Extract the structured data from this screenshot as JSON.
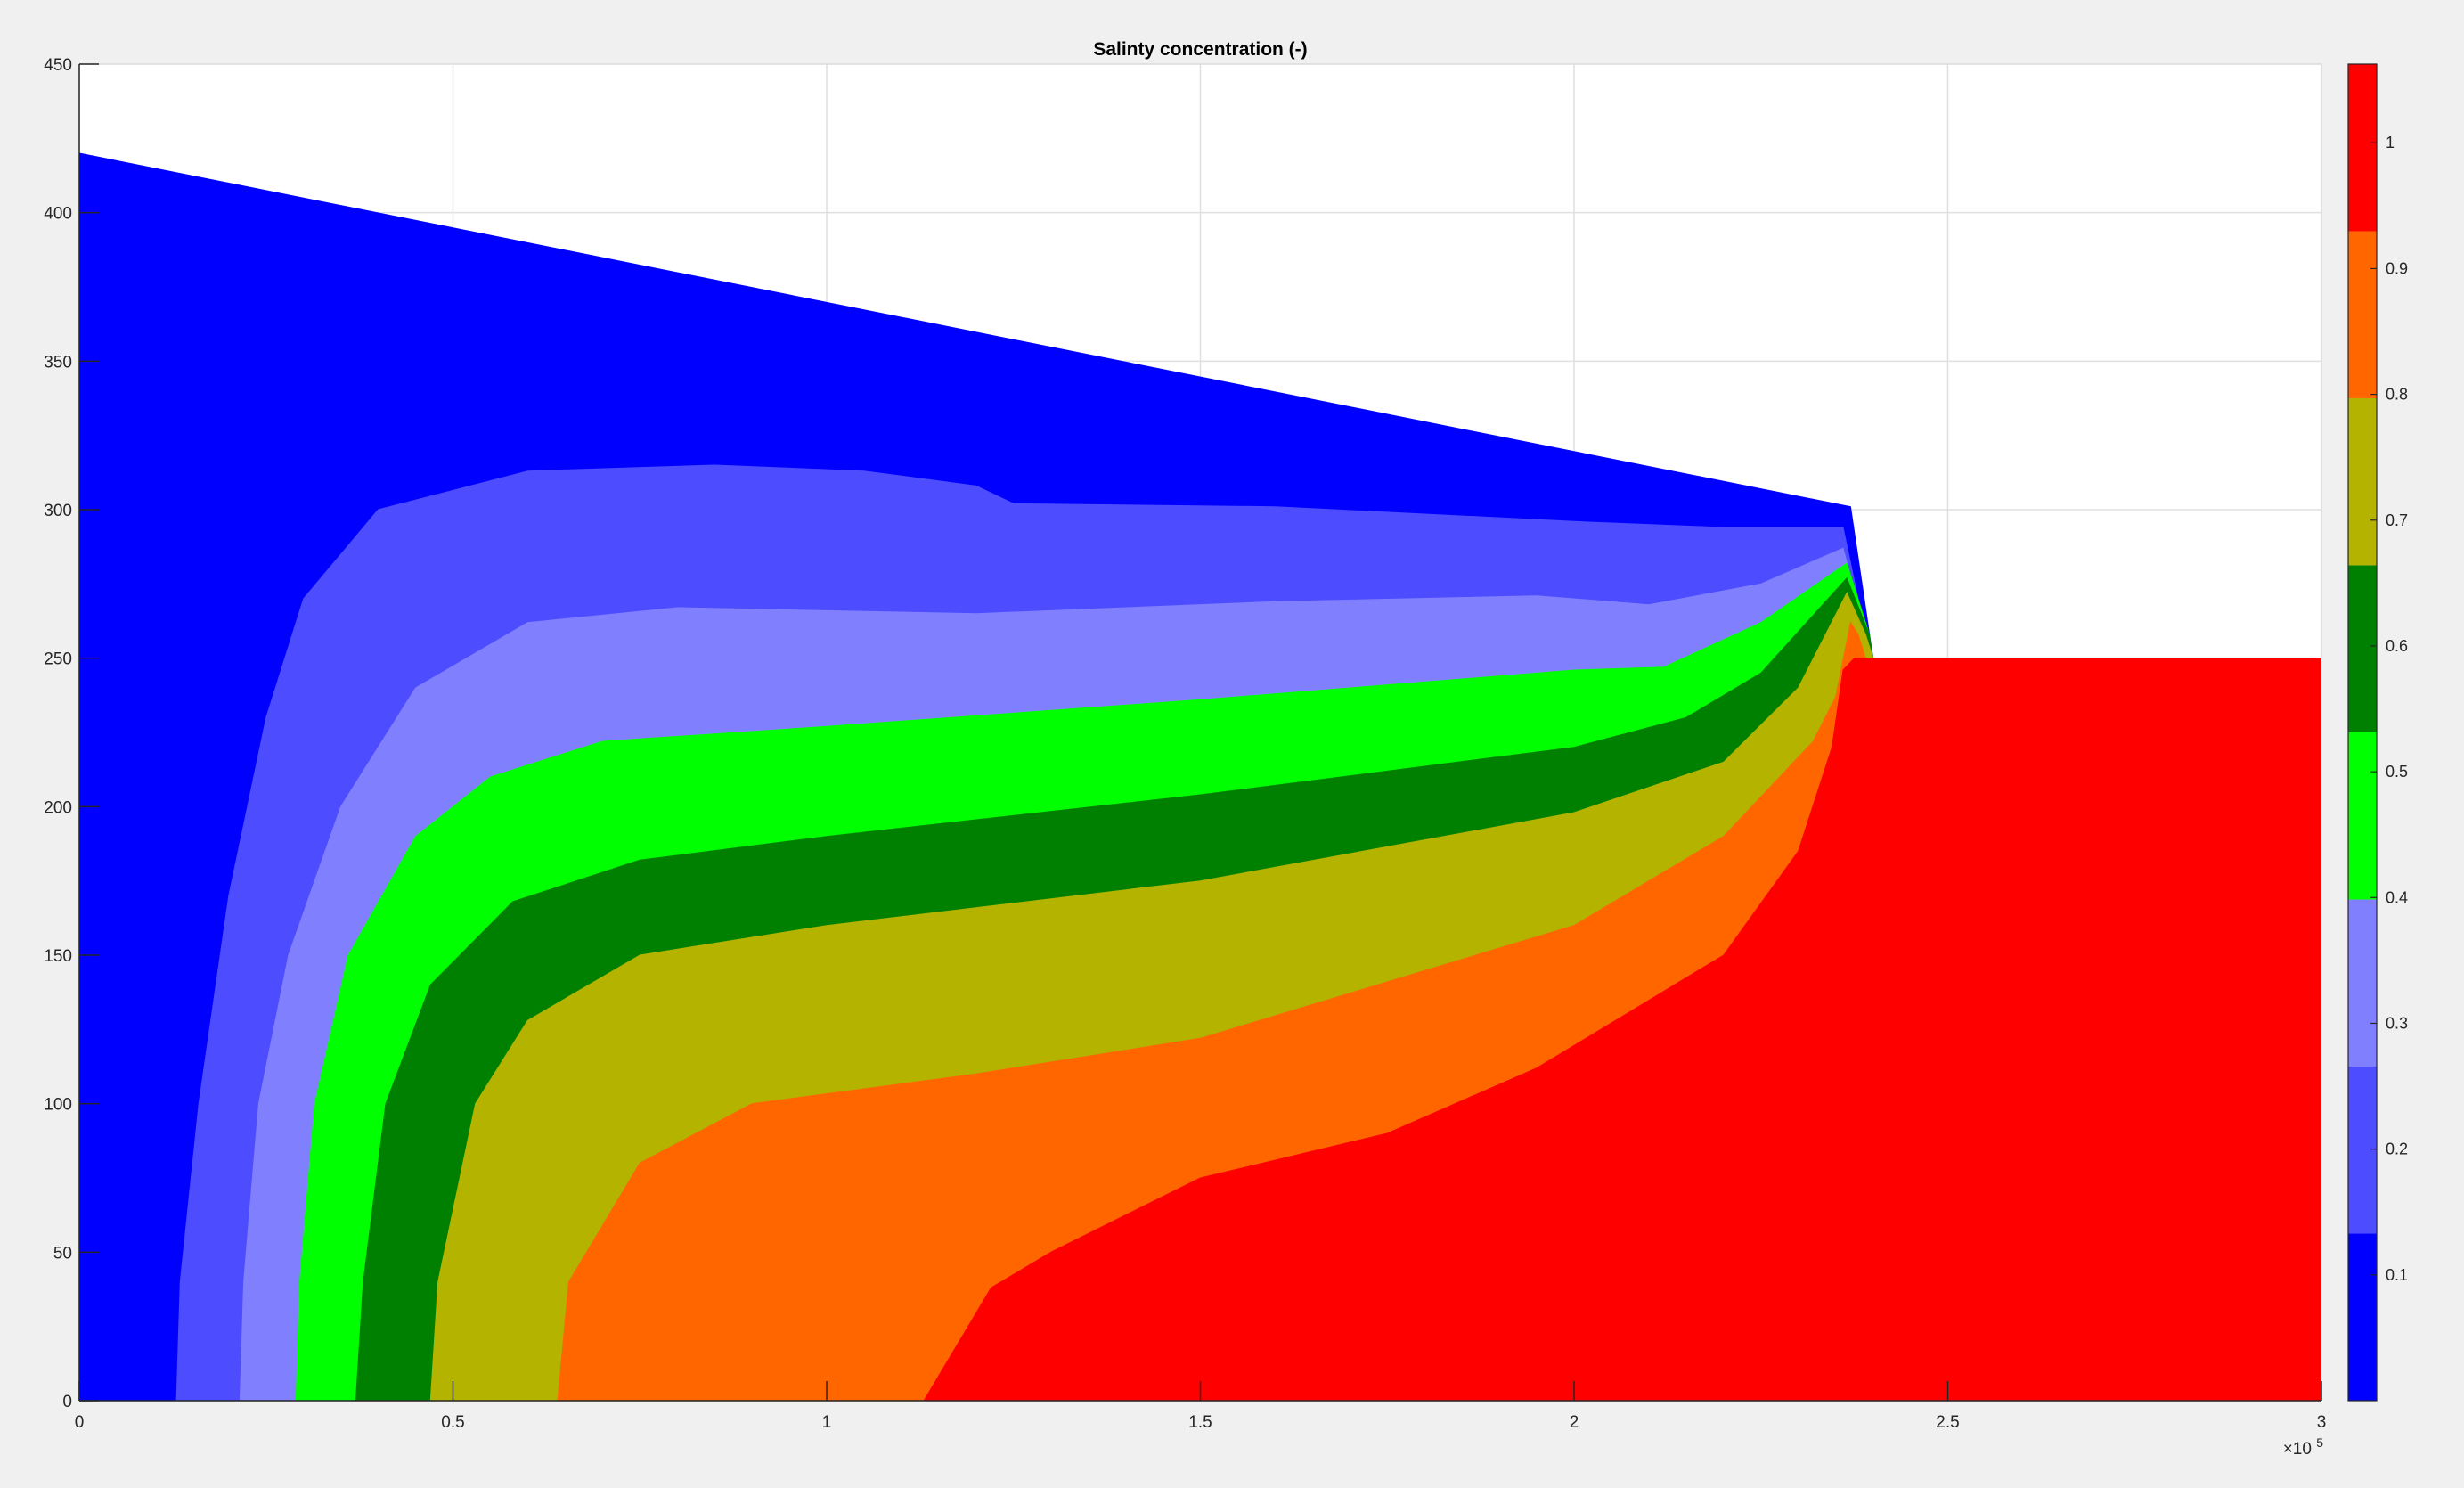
{
  "colors": {
    "figure_background": "#f0f0f0",
    "axes_background": "#ffffff",
    "grid": "#dfdfdf",
    "axis": "#262626"
  },
  "chart_data": {
    "type": "contour",
    "title": "Salinty concentration (-)",
    "xlabel": "",
    "ylabel": "",
    "xlim": [
      0,
      300000
    ],
    "ylim": [
      0,
      450
    ],
    "x_exponent_label": "×10",
    "x_exponent_power": "5",
    "x_ticks": [
      0,
      50000,
      100000,
      150000,
      200000,
      250000,
      300000
    ],
    "x_tick_labels": [
      "0",
      "0.5",
      "1",
      "1.5",
      "2",
      "2.5",
      "3"
    ],
    "y_ticks": [
      0,
      50,
      100,
      150,
      200,
      250,
      300,
      350,
      400,
      450
    ],
    "y_tick_labels": [
      "0",
      "50",
      "100",
      "150",
      "200",
      "250",
      "300",
      "350",
      "400",
      "450"
    ],
    "grid": true,
    "colorbar": {
      "location": "right",
      "limits": [
        0,
        1.0625
      ],
      "ticks": [
        0.1,
        0.2,
        0.3,
        0.4,
        0.5,
        0.6,
        0.7,
        0.8,
        0.9,
        1
      ],
      "tick_labels": [
        "0.1",
        "0.2",
        "0.3",
        "0.4",
        "0.5",
        "0.6",
        "0.7",
        "0.8",
        "0.9",
        "1"
      ],
      "bands": [
        {
          "from": 0.0,
          "to": 0.1328,
          "color": "#0000ff"
        },
        {
          "from": 0.1328,
          "to": 0.2656,
          "color": "#4d4dff"
        },
        {
          "from": 0.2656,
          "to": 0.3984,
          "color": "#8080ff"
        },
        {
          "from": 0.3984,
          "to": 0.5313,
          "color": "#00ff00"
        },
        {
          "from": 0.5313,
          "to": 0.6641,
          "color": "#008000"
        },
        {
          "from": 0.6641,
          "to": 0.7969,
          "color": "#b3b300"
        },
        {
          "from": 0.7969,
          "to": 0.9297,
          "color": "#ff6600"
        },
        {
          "from": 0.9297,
          "to": 1.0625,
          "color": "#ff0000"
        }
      ]
    },
    "domain_boundary": [
      [
        0,
        0
      ],
      [
        0,
        420
      ],
      [
        237000,
        301
      ],
      [
        240000,
        250
      ],
      [
        300000,
        250
      ],
      [
        300000,
        0
      ]
    ],
    "regions": [
      {
        "level": 0.1,
        "color": "#0000ff",
        "points": [
          [
            0,
            0
          ],
          [
            0,
            420
          ],
          [
            237000,
            301
          ],
          [
            240000,
            250
          ],
          [
            300000,
            250
          ],
          [
            300000,
            0
          ]
        ]
      },
      {
        "level": 0.2,
        "color": "#4d4dff",
        "points": [
          [
            13000,
            0
          ],
          [
            13500,
            40
          ],
          [
            16000,
            100
          ],
          [
            20000,
            170
          ],
          [
            25000,
            230
          ],
          [
            30000,
            270
          ],
          [
            40000,
            300
          ],
          [
            60000,
            313
          ],
          [
            85000,
            315
          ],
          [
            105000,
            313
          ],
          [
            120000,
            308
          ],
          [
            125000,
            302
          ],
          [
            160000,
            301
          ],
          [
            200000,
            296
          ],
          [
            220000,
            294
          ],
          [
            236000,
            294
          ],
          [
            239000,
            258
          ],
          [
            240000,
            250
          ],
          [
            300000,
            250
          ],
          [
            300000,
            0
          ]
        ]
      },
      {
        "level": 0.3,
        "color": "#8080ff",
        "points": [
          [
            21500,
            0
          ],
          [
            22000,
            40
          ],
          [
            24000,
            100
          ],
          [
            28000,
            150
          ],
          [
            35000,
            200
          ],
          [
            45000,
            240
          ],
          [
            60000,
            262
          ],
          [
            80000,
            267
          ],
          [
            120000,
            265
          ],
          [
            160000,
            269
          ],
          [
            195000,
            271
          ],
          [
            210000,
            268
          ],
          [
            225000,
            275
          ],
          [
            236000,
            287
          ],
          [
            239000,
            258
          ],
          [
            240000,
            250
          ],
          [
            300000,
            250
          ],
          [
            300000,
            0
          ]
        ]
      },
      {
        "level": 0.4,
        "color": "#00ff00",
        "points": [
          [
            29000,
            0
          ],
          [
            29500,
            40
          ],
          [
            31500,
            100
          ],
          [
            36000,
            150
          ],
          [
            45000,
            190
          ],
          [
            55000,
            210
          ],
          [
            70000,
            222
          ],
          [
            100000,
            227
          ],
          [
            150000,
            236
          ],
          [
            200000,
            246
          ],
          [
            212000,
            247
          ],
          [
            225000,
            262
          ],
          [
            236500,
            282
          ],
          [
            239500,
            258
          ],
          [
            240000,
            250
          ],
          [
            300000,
            250
          ],
          [
            300000,
            0
          ]
        ]
      },
      {
        "level": 0.5,
        "color": "#008000",
        "points": [
          [
            37000,
            0
          ],
          [
            38000,
            40
          ],
          [
            41000,
            100
          ],
          [
            47000,
            140
          ],
          [
            58000,
            168
          ],
          [
            75000,
            182
          ],
          [
            100000,
            190
          ],
          [
            150000,
            204
          ],
          [
            200000,
            220
          ],
          [
            215000,
            230
          ],
          [
            225000,
            245
          ],
          [
            236500,
            277
          ],
          [
            239500,
            258
          ],
          [
            240000,
            250
          ],
          [
            300000,
            250
          ],
          [
            300000,
            0
          ]
        ]
      },
      {
        "level": 0.6,
        "color": "#b3b300",
        "points": [
          [
            47000,
            0
          ],
          [
            48000,
            40
          ],
          [
            53000,
            100
          ],
          [
            60000,
            128
          ],
          [
            75000,
            150
          ],
          [
            100000,
            160
          ],
          [
            150000,
            175
          ],
          [
            200000,
            198
          ],
          [
            220000,
            215
          ],
          [
            230000,
            240
          ],
          [
            236500,
            272
          ],
          [
            239000,
            258
          ],
          [
            240000,
            250
          ],
          [
            300000,
            250
          ],
          [
            300000,
            0
          ]
        ]
      },
      {
        "level": 0.7,
        "color": "#ff6600",
        "points": [
          [
            64000,
            0
          ],
          [
            65500,
            40
          ],
          [
            75000,
            80
          ],
          [
            90000,
            100
          ],
          [
            120000,
            110
          ],
          [
            150000,
            122
          ],
          [
            200000,
            160
          ],
          [
            220000,
            190
          ],
          [
            232000,
            222
          ],
          [
            235000,
            237
          ],
          [
            237000,
            262
          ],
          [
            238000,
            258
          ],
          [
            239000,
            250
          ],
          [
            300000,
            250
          ],
          [
            300000,
            0
          ]
        ]
      },
      {
        "level": 0.8,
        "color": "#ff0000",
        "points": [
          [
            113000,
            0
          ],
          [
            122000,
            38
          ],
          [
            130000,
            50
          ],
          [
            150000,
            75
          ],
          [
            175000,
            90
          ],
          [
            195000,
            112
          ],
          [
            220000,
            150
          ],
          [
            230000,
            185
          ],
          [
            234500,
            220
          ],
          [
            236000,
            246
          ],
          [
            237500,
            250
          ],
          [
            239500,
            250
          ],
          [
            300000,
            250
          ],
          [
            300000,
            0
          ]
        ]
      }
    ]
  }
}
